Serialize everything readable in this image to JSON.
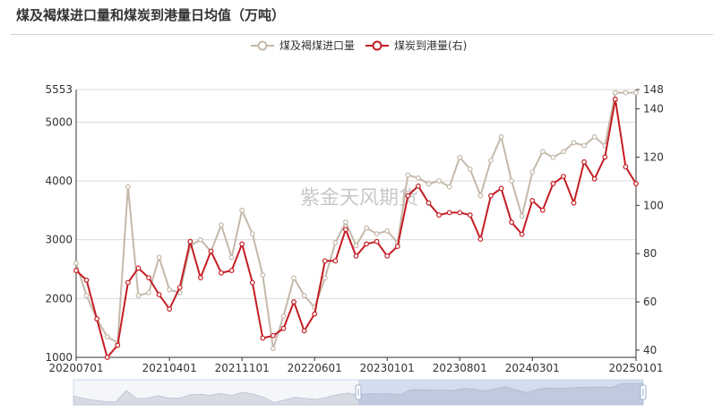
{
  "title": "煤及褐煤进口量和煤炭到港量日均值（万吨）",
  "watermark": "紫金天风期货",
  "colors": {
    "series1": "#c4b9aa",
    "series2": "#c41d24",
    "grid": "#d9d9d9",
    "axis": "#333333"
  },
  "chart_data": {
    "type": "line",
    "x": [
      "20200701",
      "20200801",
      "20200901",
      "20201001",
      "20201101",
      "20201201",
      "20210101",
      "20210201",
      "20210301",
      "20210401",
      "20210501",
      "20210601",
      "20210701",
      "20210801",
      "20210901",
      "20211001",
      "20211101",
      "20211201",
      "20220101",
      "20220201",
      "20220301",
      "20220401",
      "20220501",
      "20220601",
      "20220701",
      "20220801",
      "20220901",
      "20221001",
      "20221101",
      "20221201",
      "20230101",
      "20230201",
      "20230301",
      "20230401",
      "20230501",
      "20230601",
      "20230701",
      "20230801",
      "20230901",
      "20231001",
      "20231101",
      "20231201",
      "20240101",
      "20240201",
      "20240301",
      "20240401",
      "20240501",
      "20240601",
      "20240701",
      "20240801",
      "20240901",
      "20241001",
      "20241101",
      "20241201",
      "20250101"
    ],
    "xticks": [
      "20200701",
      "20210401",
      "20211101",
      "20220601",
      "20230101",
      "20230801",
      "20240301",
      "20250101"
    ],
    "y_left": {
      "min": 1000,
      "max": 5553,
      "ticks": [
        1000,
        2000,
        3000,
        4000,
        5000,
        5553
      ]
    },
    "y_right": {
      "min": 37,
      "max": 148,
      "ticks": [
        40,
        60,
        80,
        100,
        120,
        140,
        148
      ]
    },
    "grid": true,
    "legend_position": "top-center",
    "series": [
      {
        "name": "煤及褐煤进口量",
        "axis": "left",
        "values": [
          2600,
          2050,
          1650,
          1350,
          1250,
          3900,
          2050,
          2100,
          2700,
          2150,
          2100,
          2900,
          3000,
          2800,
          3250,
          2700,
          3500,
          3100,
          2400,
          1150,
          1700,
          2350,
          2050,
          1850,
          2350,
          2950,
          3300,
          2900,
          3200,
          3100,
          3150,
          2950,
          4100,
          4050,
          3950,
          4000,
          3900,
          4400,
          4200,
          3750,
          4350,
          4750,
          4000,
          3400,
          4150,
          4500,
          4400,
          4500,
          4650,
          4600,
          4750,
          4600,
          5500,
          5500,
          5500
        ]
      },
      {
        "name": "煤炭到港量(右)",
        "axis": "right",
        "values": [
          73,
          69,
          53,
          37,
          42,
          68,
          74,
          70,
          63,
          57,
          66,
          85,
          70,
          81,
          72,
          73,
          84,
          68,
          45,
          46,
          49,
          60,
          48,
          55,
          77,
          77,
          90,
          79,
          84,
          85,
          79,
          83,
          104,
          108,
          101,
          96,
          97,
          97,
          96,
          86,
          104,
          107,
          93,
          88,
          102,
          98,
          109,
          112,
          101,
          118,
          111,
          120,
          144,
          116,
          109
        ]
      }
    ]
  }
}
